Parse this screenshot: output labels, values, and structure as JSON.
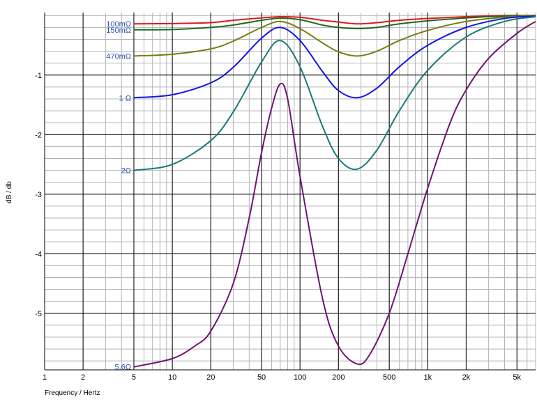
{
  "colors": {
    "background": "#ffffff",
    "grid_major": "#000000",
    "grid_minor": "#b4b4b4",
    "label_text": "#2b4fb0"
  },
  "chart_data": {
    "type": "line",
    "title": "",
    "xlabel": "Frequency / Hertz",
    "ylabel": "dB / db",
    "x_scale": "log",
    "xlim": [
      1,
      7000
    ],
    "ylim": [
      -5.95,
      0.05
    ],
    "grid": true,
    "x_ticks": [
      {
        "value": 1,
        "label": "1"
      },
      {
        "value": 2,
        "label": "2"
      },
      {
        "value": 5,
        "label": "5"
      },
      {
        "value": 10,
        "label": "10"
      },
      {
        "value": 20,
        "label": "20"
      },
      {
        "value": 50,
        "label": "50"
      },
      {
        "value": 100,
        "label": "100"
      },
      {
        "value": 200,
        "label": "200"
      },
      {
        "value": 500,
        "label": "500"
      },
      {
        "value": 1000,
        "label": "1k"
      },
      {
        "value": 2000,
        "label": "2k"
      },
      {
        "value": 5000,
        "label": "5k"
      }
    ],
    "y_ticks": [
      {
        "value": -1,
        "label": "-1"
      },
      {
        "value": -2,
        "label": "-2"
      },
      {
        "value": -3,
        "label": "-3"
      },
      {
        "value": -4,
        "label": "-4"
      },
      {
        "value": -5,
        "label": "-5"
      }
    ],
    "series": [
      {
        "name": "100mΩ",
        "color": "#e01818",
        "x": [
          5,
          10,
          20,
          30,
          50,
          70,
          100,
          150,
          200,
          280,
          400,
          600,
          1000,
          2000,
          4000,
          7000
        ],
        "y": [
          -0.14,
          -0.135,
          -0.12,
          -0.08,
          -0.04,
          -0.02,
          -0.03,
          -0.08,
          -0.11,
          -0.14,
          -0.12,
          -0.08,
          -0.05,
          -0.02,
          0.0,
          0.0
        ]
      },
      {
        "name": "150mΩ",
        "color": "#1e6b1e",
        "x": [
          5,
          10,
          20,
          30,
          50,
          70,
          100,
          150,
          200,
          280,
          400,
          600,
          1000,
          2000,
          4000,
          7000
        ],
        "y": [
          -0.24,
          -0.235,
          -0.2,
          -0.16,
          -0.08,
          -0.045,
          -0.07,
          -0.16,
          -0.2,
          -0.22,
          -0.2,
          -0.14,
          -0.09,
          -0.04,
          -0.01,
          0.0
        ]
      },
      {
        "name": "470mΩ",
        "color": "#7a7a10",
        "x": [
          5,
          10,
          20,
          30,
          50,
          70,
          100,
          150,
          200,
          280,
          400,
          600,
          1000,
          2000,
          4000,
          7000
        ],
        "y": [
          -0.68,
          -0.65,
          -0.56,
          -0.43,
          -0.2,
          -0.1,
          -0.22,
          -0.46,
          -0.61,
          -0.68,
          -0.6,
          -0.42,
          -0.25,
          -0.1,
          -0.03,
          0.0
        ]
      },
      {
        "name": "1 Ω",
        "color": "#1414e6",
        "x": [
          5,
          10,
          20,
          30,
          50,
          70,
          100,
          150,
          200,
          280,
          400,
          600,
          1000,
          2000,
          4000,
          7000
        ],
        "y": [
          -1.38,
          -1.33,
          -1.13,
          -0.87,
          -0.38,
          -0.2,
          -0.42,
          -0.94,
          -1.26,
          -1.38,
          -1.22,
          -0.86,
          -0.5,
          -0.2,
          -0.05,
          -0.01
        ]
      },
      {
        "name": "2Ω",
        "color": "#157a7a",
        "x": [
          5,
          10,
          20,
          30,
          50,
          70,
          100,
          150,
          200,
          280,
          400,
          600,
          1000,
          2000,
          4000,
          7000
        ],
        "y": [
          -2.6,
          -2.5,
          -2.1,
          -1.62,
          -0.78,
          -0.42,
          -0.86,
          -1.86,
          -2.4,
          -2.58,
          -2.26,
          -1.6,
          -0.92,
          -0.36,
          -0.1,
          -0.02
        ]
      },
      {
        "name": "5.6Ω",
        "color": "#6e1470",
        "x": [
          5,
          10,
          15,
          20,
          30,
          40,
          50,
          60,
          70,
          80,
          100,
          150,
          200,
          280,
          350,
          500,
          700,
          1000,
          1500,
          2000,
          3000,
          5000,
          7000
        ],
        "y": [
          -5.9,
          -5.76,
          -5.55,
          -5.3,
          -4.5,
          -3.4,
          -2.3,
          -1.55,
          -1.15,
          -1.4,
          -2.7,
          -4.75,
          -5.55,
          -5.85,
          -5.7,
          -5.0,
          -4.0,
          -2.9,
          -1.8,
          -1.25,
          -0.72,
          -0.3,
          -0.1
        ]
      }
    ]
  }
}
